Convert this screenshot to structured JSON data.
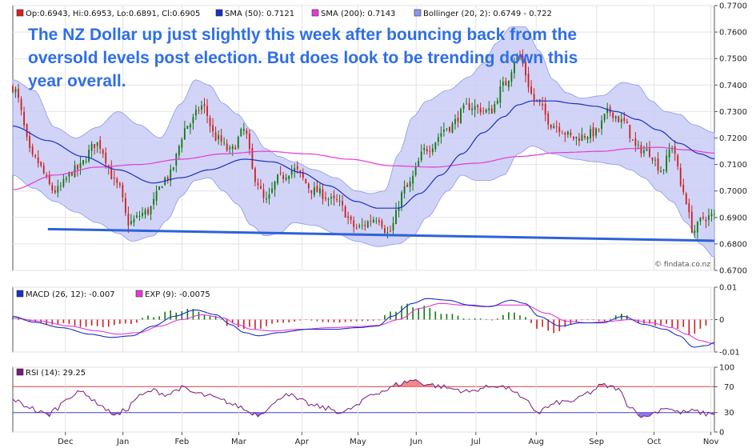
{
  "chart_data": [
    {
      "type": "candlestick",
      "name_panel": "price",
      "legend": [
        {
          "label": "Op:0.6943, Hi:0.6953, Lo:0.6891, Cl:0.6905",
          "color": "#d62020"
        },
        {
          "label": "SMA (50): 0.7121",
          "color": "#1c2fc4"
        },
        {
          "label": "SMA (200): 0.7143",
          "color": "#e23ad8"
        },
        {
          "label": "Bollinger (20, 2): 0.6749 - 0.722",
          "color": "#8a97f0"
        }
      ],
      "ylim": [
        0.67,
        0.77
      ],
      "yticks": [
        "0.7700",
        "0.7600",
        "0.7500",
        "0.7400",
        "0.7300",
        "0.7200",
        "0.7100",
        "0.7000",
        "0.6900",
        "0.6800",
        "0.6700"
      ],
      "annotation": "The NZ Dollar up just slightly this week after bouncing back from the oversold levels post election. But does look to be trending down this year overall.",
      "watermark": "© findata.co.nz",
      "trendline": [
        [
          0.05,
          0.6856
        ],
        [
          1.0,
          0.6812
        ]
      ],
      "close_anchors": [
        [
          0.0,
          0.739
        ],
        [
          0.03,
          0.712
        ],
        [
          0.06,
          0.7
        ],
        [
          0.09,
          0.708
        ],
        [
          0.12,
          0.718
        ],
        [
          0.15,
          0.702
        ],
        [
          0.165,
          0.688
        ],
        [
          0.19,
          0.692
        ],
        [
          0.22,
          0.705
        ],
        [
          0.25,
          0.725
        ],
        [
          0.27,
          0.732
        ],
        [
          0.29,
          0.72
        ],
        [
          0.31,
          0.715
        ],
        [
          0.33,
          0.723
        ],
        [
          0.345,
          0.705
        ],
        [
          0.36,
          0.696
        ],
        [
          0.38,
          0.705
        ],
        [
          0.4,
          0.708
        ],
        [
          0.43,
          0.7
        ],
        [
          0.46,
          0.696
        ],
        [
          0.49,
          0.686
        ],
        [
          0.52,
          0.69
        ],
        [
          0.535,
          0.684
        ],
        [
          0.56,
          0.701
        ],
        [
          0.59,
          0.716
        ],
        [
          0.62,
          0.724
        ],
        [
          0.65,
          0.732
        ],
        [
          0.68,
          0.73
        ],
        [
          0.7,
          0.74
        ],
        [
          0.72,
          0.751
        ],
        [
          0.745,
          0.734
        ],
        [
          0.77,
          0.725
        ],
        [
          0.8,
          0.72
        ],
        [
          0.83,
          0.722
        ],
        [
          0.85,
          0.73
        ],
        [
          0.87,
          0.726
        ],
        [
          0.89,
          0.716
        ],
        [
          0.905,
          0.715
        ],
        [
          0.925,
          0.708
        ],
        [
          0.94,
          0.717
        ],
        [
          0.955,
          0.7
        ],
        [
          0.97,
          0.685
        ],
        [
          0.985,
          0.69
        ],
        [
          1.0,
          0.6905
        ]
      ],
      "sma50_anchors": [
        [
          0.0,
          0.7245
        ],
        [
          0.05,
          0.719
        ],
        [
          0.1,
          0.713
        ],
        [
          0.15,
          0.708
        ],
        [
          0.2,
          0.703
        ],
        [
          0.24,
          0.705
        ],
        [
          0.28,
          0.708
        ],
        [
          0.33,
          0.712
        ],
        [
          0.37,
          0.711
        ],
        [
          0.41,
          0.707
        ],
        [
          0.45,
          0.702
        ],
        [
          0.49,
          0.696
        ],
        [
          0.52,
          0.6935
        ],
        [
          0.55,
          0.6935
        ],
        [
          0.58,
          0.699
        ],
        [
          0.61,
          0.706
        ],
        [
          0.64,
          0.714
        ],
        [
          0.67,
          0.722
        ],
        [
          0.7,
          0.728
        ],
        [
          0.72,
          0.7325
        ],
        [
          0.74,
          0.734
        ],
        [
          0.77,
          0.734
        ],
        [
          0.8,
          0.733
        ],
        [
          0.83,
          0.732
        ],
        [
          0.86,
          0.73
        ],
        [
          0.89,
          0.727
        ],
        [
          0.92,
          0.723
        ],
        [
          0.95,
          0.718
        ],
        [
          0.98,
          0.714
        ],
        [
          1.0,
          0.7121
        ]
      ],
      "sma200_anchors": [
        [
          0.0,
          0.7005
        ],
        [
          0.06,
          0.706
        ],
        [
          0.12,
          0.709
        ],
        [
          0.18,
          0.71
        ],
        [
          0.24,
          0.712
        ],
        [
          0.3,
          0.714
        ],
        [
          0.36,
          0.715
        ],
        [
          0.42,
          0.714
        ],
        [
          0.48,
          0.712
        ],
        [
          0.54,
          0.7095
        ],
        [
          0.6,
          0.709
        ],
        [
          0.66,
          0.7105
        ],
        [
          0.72,
          0.713
        ],
        [
          0.78,
          0.7145
        ],
        [
          0.84,
          0.715
        ],
        [
          0.88,
          0.716
        ],
        [
          0.92,
          0.7165
        ],
        [
          0.96,
          0.7155
        ],
        [
          1.0,
          0.7143
        ]
      ],
      "bb_upper_anchors": [
        [
          0.0,
          0.742
        ],
        [
          0.03,
          0.738
        ],
        [
          0.06,
          0.724
        ],
        [
          0.09,
          0.72
        ],
        [
          0.12,
          0.724
        ],
        [
          0.15,
          0.73
        ],
        [
          0.18,
          0.725
        ],
        [
          0.21,
          0.72
        ],
        [
          0.24,
          0.733
        ],
        [
          0.26,
          0.742
        ],
        [
          0.28,
          0.74
        ],
        [
          0.3,
          0.733
        ],
        [
          0.32,
          0.729
        ],
        [
          0.34,
          0.723
        ],
        [
          0.36,
          0.716
        ],
        [
          0.38,
          0.713
        ],
        [
          0.4,
          0.711
        ],
        [
          0.43,
          0.708
        ],
        [
          0.46,
          0.705
        ],
        [
          0.49,
          0.7
        ],
        [
          0.51,
          0.699
        ],
        [
          0.53,
          0.7
        ],
        [
          0.55,
          0.714
        ],
        [
          0.57,
          0.728
        ],
        [
          0.59,
          0.734
        ],
        [
          0.62,
          0.738
        ],
        [
          0.65,
          0.743
        ],
        [
          0.67,
          0.748
        ],
        [
          0.69,
          0.756
        ],
        [
          0.71,
          0.762
        ],
        [
          0.73,
          0.762
        ],
        [
          0.75,
          0.753
        ],
        [
          0.77,
          0.742
        ],
        [
          0.79,
          0.737
        ],
        [
          0.81,
          0.735
        ],
        [
          0.84,
          0.736
        ],
        [
          0.87,
          0.741
        ],
        [
          0.89,
          0.74
        ],
        [
          0.91,
          0.734
        ],
        [
          0.93,
          0.73
        ],
        [
          0.95,
          0.729
        ],
        [
          0.97,
          0.725
        ],
        [
          1.0,
          0.722
        ]
      ],
      "bb_lower_anchors": [
        [
          0.0,
          0.706
        ],
        [
          0.03,
          0.701
        ],
        [
          0.06,
          0.696
        ],
        [
          0.09,
          0.692
        ],
        [
          0.12,
          0.688
        ],
        [
          0.15,
          0.684
        ],
        [
          0.17,
          0.681
        ],
        [
          0.2,
          0.683
        ],
        [
          0.22,
          0.689
        ],
        [
          0.24,
          0.698
        ],
        [
          0.26,
          0.704
        ],
        [
          0.28,
          0.705
        ],
        [
          0.3,
          0.7
        ],
        [
          0.32,
          0.695
        ],
        [
          0.34,
          0.687
        ],
        [
          0.36,
          0.683
        ],
        [
          0.38,
          0.684
        ],
        [
          0.4,
          0.688
        ],
        [
          0.43,
          0.687
        ],
        [
          0.46,
          0.684
        ],
        [
          0.49,
          0.681
        ],
        [
          0.52,
          0.679
        ],
        [
          0.55,
          0.68
        ],
        [
          0.57,
          0.683
        ],
        [
          0.59,
          0.69
        ],
        [
          0.62,
          0.7
        ],
        [
          0.64,
          0.706
        ],
        [
          0.66,
          0.704
        ],
        [
          0.68,
          0.704
        ],
        [
          0.7,
          0.706
        ],
        [
          0.72,
          0.714
        ],
        [
          0.74,
          0.717
        ],
        [
          0.77,
          0.714
        ],
        [
          0.8,
          0.712
        ],
        [
          0.83,
          0.711
        ],
        [
          0.86,
          0.71
        ],
        [
          0.88,
          0.708
        ],
        [
          0.9,
          0.705
        ],
        [
          0.92,
          0.7
        ],
        [
          0.94,
          0.696
        ],
        [
          0.96,
          0.688
        ],
        [
          0.98,
          0.68
        ],
        [
          1.0,
          0.6749
        ]
      ]
    },
    {
      "type": "macd",
      "name_panel": "macd",
      "legend": [
        {
          "label": "MACD (26, 12): -0.007",
          "color": "#1c2fc4"
        },
        {
          "label": "EXP (9): -0.0075",
          "color": "#e23ad8"
        }
      ],
      "ylim": [
        -0.01,
        0.01
      ],
      "yticks": [
        "0.01",
        "0",
        "-0.01"
      ],
      "macd_anchors": [
        [
          0.0,
          0.001
        ],
        [
          0.03,
          -0.0008
        ],
        [
          0.07,
          -0.0025
        ],
        [
          0.11,
          -0.0045
        ],
        [
          0.14,
          -0.0055
        ],
        [
          0.17,
          -0.005
        ],
        [
          0.2,
          -0.002
        ],
        [
          0.23,
          0.001
        ],
        [
          0.26,
          0.003
        ],
        [
          0.29,
          0.0015
        ],
        [
          0.31,
          -0.0015
        ],
        [
          0.33,
          -0.004
        ],
        [
          0.35,
          -0.005
        ],
        [
          0.38,
          -0.004
        ],
        [
          0.42,
          -0.003
        ],
        [
          0.46,
          -0.003
        ],
        [
          0.49,
          -0.0025
        ],
        [
          0.52,
          -0.002
        ],
        [
          0.54,
          0.001
        ],
        [
          0.57,
          0.005
        ],
        [
          0.59,
          0.0065
        ],
        [
          0.62,
          0.006
        ],
        [
          0.65,
          0.0045
        ],
        [
          0.68,
          0.004
        ],
        [
          0.71,
          0.006
        ],
        [
          0.73,
          0.005
        ],
        [
          0.75,
          0.001
        ],
        [
          0.78,
          -0.002
        ],
        [
          0.81,
          -0.001
        ],
        [
          0.84,
          -0.001
        ],
        [
          0.87,
          0.001
        ],
        [
          0.9,
          -0.0015
        ],
        [
          0.93,
          -0.003
        ],
        [
          0.95,
          -0.005
        ],
        [
          0.97,
          -0.0085
        ],
        [
          0.99,
          -0.008
        ],
        [
          1.0,
          -0.007
        ]
      ],
      "signal_anchors": [
        [
          0.0,
          0.0005
        ],
        [
          0.04,
          -0.0005
        ],
        [
          0.08,
          -0.002
        ],
        [
          0.12,
          -0.0035
        ],
        [
          0.15,
          -0.0045
        ],
        [
          0.18,
          -0.004
        ],
        [
          0.21,
          -0.002
        ],
        [
          0.24,
          0.0
        ],
        [
          0.27,
          0.0015
        ],
        [
          0.3,
          0.0005
        ],
        [
          0.32,
          -0.0015
        ],
        [
          0.34,
          -0.003
        ],
        [
          0.37,
          -0.0035
        ],
        [
          0.41,
          -0.003
        ],
        [
          0.45,
          -0.0025
        ],
        [
          0.49,
          -0.0022
        ],
        [
          0.52,
          -0.0018
        ],
        [
          0.55,
          0.0
        ],
        [
          0.58,
          0.0035
        ],
        [
          0.61,
          0.005
        ],
        [
          0.64,
          0.0045
        ],
        [
          0.67,
          0.004
        ],
        [
          0.7,
          0.0045
        ],
        [
          0.73,
          0.0045
        ],
        [
          0.76,
          0.002
        ],
        [
          0.79,
          -0.0005
        ],
        [
          0.82,
          -0.001
        ],
        [
          0.85,
          -0.0005
        ],
        [
          0.88,
          0.0
        ],
        [
          0.91,
          -0.001
        ],
        [
          0.94,
          -0.0025
        ],
        [
          0.96,
          -0.0045
        ],
        [
          0.98,
          -0.0065
        ],
        [
          1.0,
          -0.0075
        ]
      ]
    },
    {
      "type": "rsi",
      "name_panel": "rsi",
      "legend": [
        {
          "label": "RSI (14): 29.25",
          "color": "#7a1a7a"
        }
      ],
      "ylim": [
        0,
        100
      ],
      "yticks": [
        "100",
        "70",
        "30",
        "0"
      ],
      "levels": [
        70,
        30
      ],
      "rsi_anchors": [
        [
          0.0,
          50
        ],
        [
          0.02,
          40
        ],
        [
          0.04,
          30
        ],
        [
          0.05,
          26
        ],
        [
          0.06,
          35
        ],
        [
          0.08,
          55
        ],
        [
          0.1,
          62
        ],
        [
          0.12,
          45
        ],
        [
          0.14,
          30
        ],
        [
          0.15,
          26
        ],
        [
          0.16,
          34
        ],
        [
          0.18,
          55
        ],
        [
          0.2,
          64
        ],
        [
          0.22,
          58
        ],
        [
          0.24,
          68
        ],
        [
          0.26,
          60
        ],
        [
          0.28,
          55
        ],
        [
          0.3,
          48
        ],
        [
          0.32,
          40
        ],
        [
          0.34,
          30
        ],
        [
          0.35,
          27
        ],
        [
          0.37,
          42
        ],
        [
          0.39,
          60
        ],
        [
          0.41,
          48
        ],
        [
          0.43,
          40
        ],
        [
          0.45,
          36
        ],
        [
          0.47,
          30
        ],
        [
          0.49,
          40
        ],
        [
          0.51,
          58
        ],
        [
          0.53,
          64
        ],
        [
          0.55,
          74
        ],
        [
          0.57,
          80
        ],
        [
          0.59,
          74
        ],
        [
          0.61,
          70
        ],
        [
          0.63,
          66
        ],
        [
          0.65,
          62
        ],
        [
          0.67,
          68
        ],
        [
          0.69,
          72
        ],
        [
          0.71,
          66
        ],
        [
          0.73,
          48
        ],
        [
          0.75,
          30
        ],
        [
          0.76,
          38
        ],
        [
          0.78,
          46
        ],
        [
          0.8,
          48
        ],
        [
          0.82,
          60
        ],
        [
          0.84,
          72
        ],
        [
          0.86,
          68
        ],
        [
          0.88,
          40
        ],
        [
          0.89,
          30
        ],
        [
          0.9,
          22
        ],
        [
          0.91,
          28
        ],
        [
          0.93,
          38
        ],
        [
          0.95,
          30
        ],
        [
          0.97,
          32
        ],
        [
          0.99,
          28
        ],
        [
          1.0,
          29.25
        ]
      ]
    }
  ],
  "x_axis": {
    "months": [
      {
        "label": "Dec",
        "pos": 0.075
      },
      {
        "label": "Jan",
        "pos": 0.157
      },
      {
        "label": "Feb",
        "pos": 0.241
      },
      {
        "label": "Mar",
        "pos": 0.322
      },
      {
        "label": "Apr",
        "pos": 0.412
      },
      {
        "label": "May",
        "pos": 0.492
      },
      {
        "label": "Jun",
        "pos": 0.575
      },
      {
        "label": "Jul",
        "pos": 0.66
      },
      {
        "label": "Aug",
        "pos": 0.746
      },
      {
        "label": "Sep",
        "pos": 0.832
      },
      {
        "label": "Oct",
        "pos": 0.914
      },
      {
        "label": "Nov",
        "pos": 0.995
      }
    ]
  }
}
